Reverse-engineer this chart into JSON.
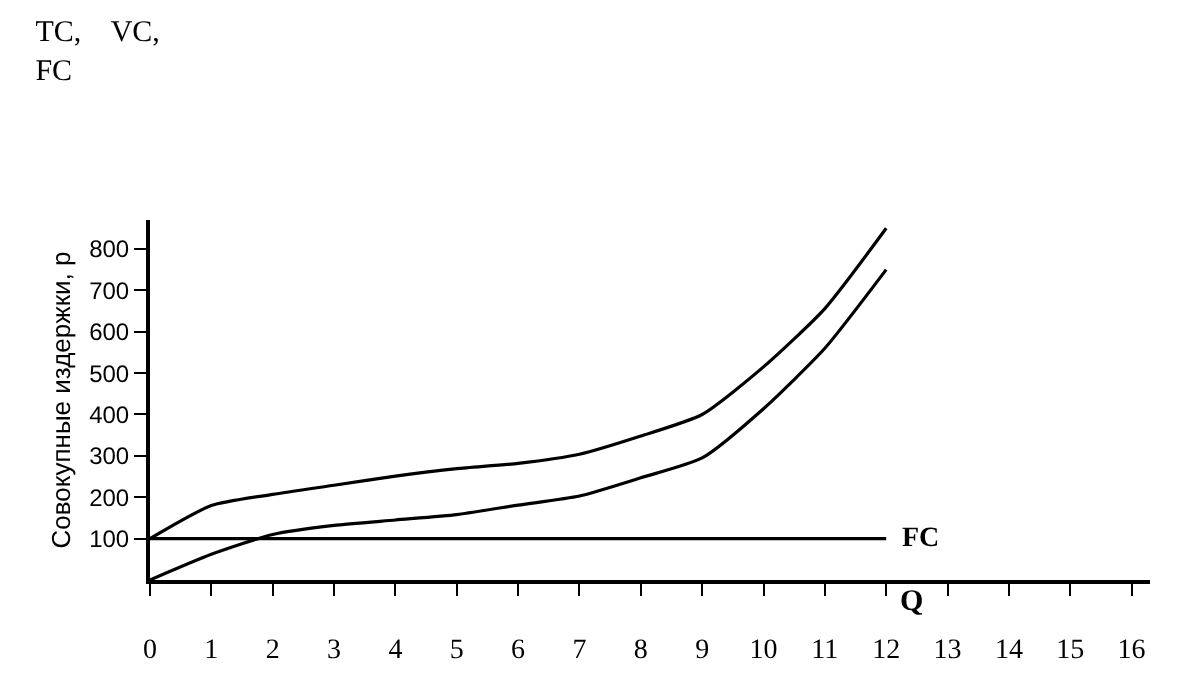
{
  "chart_data": {
    "type": "line",
    "title": "TC,    VC,\nFC",
    "ylabel": "Совокупные издержки, р",
    "xlabel": "Q",
    "x": [
      0,
      1,
      2,
      3,
      4,
      5,
      6,
      7,
      8,
      9,
      10,
      11,
      12
    ],
    "series": [
      {
        "color": "#000000",
        "values": [
          100,
          180,
          207,
          229,
          251,
          269,
          282,
          304,
          348,
          400,
          515,
          656,
          850
        ]
      },
      {
        "color": "#000000",
        "values": [
          0,
          62,
          110,
          132,
          145,
          158,
          181,
          203,
          247,
          295,
          414,
          560,
          750
        ]
      },
      {
        "name": "FC",
        "color": "#000000",
        "values": [
          100,
          100,
          100,
          100,
          100,
          100,
          100,
          100,
          100,
          100,
          100,
          100,
          100
        ]
      }
    ],
    "xlim": [
      0,
      16.3
    ],
    "xticks": [
      0,
      1,
      2,
      3,
      4,
      5,
      6,
      7,
      8,
      9,
      10,
      11,
      12,
      13,
      14,
      15,
      16
    ],
    "ylim": [
      0,
      870
    ],
    "yticks": [
      100,
      200,
      300,
      400,
      500,
      600,
      700,
      800
    ],
    "legend": false,
    "marker": "none",
    "line_style": "solid"
  }
}
